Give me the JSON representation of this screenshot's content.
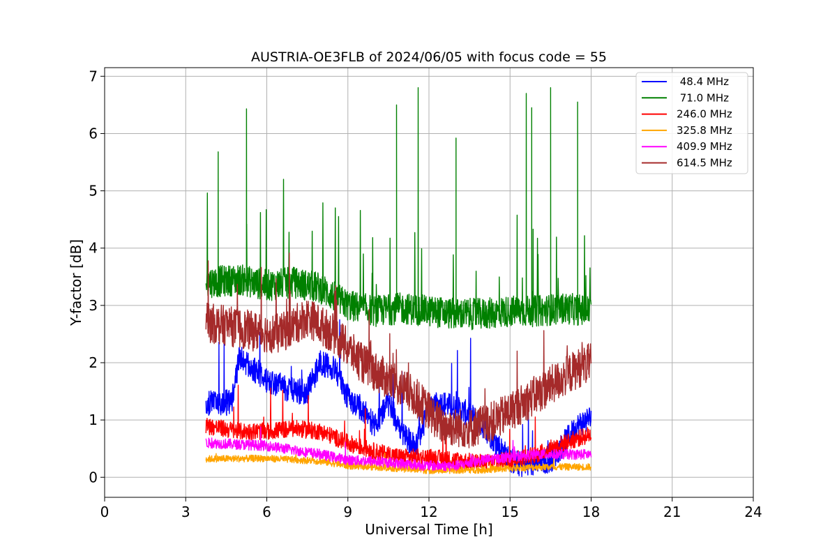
{
  "chart_data": {
    "type": "line",
    "title": "AUSTRIA-OE3FLB of 2024/06/05 with focus code = 55",
    "xlabel": "Universal Time [h]",
    "ylabel": "Y-factor [dB]",
    "xlim": [
      0,
      24
    ],
    "ylim": [
      -0.35,
      7.15
    ],
    "xticks": [
      0,
      3,
      6,
      9,
      12,
      15,
      18,
      21,
      24
    ],
    "yticks": [
      0,
      1,
      2,
      3,
      4,
      5,
      6,
      7
    ],
    "grid": true,
    "legend_position": "upper right",
    "series": [
      {
        "name": " 48.4 MHz",
        "color": "#0000ff",
        "data_range_h": [
          3.75,
          18.0
        ],
        "envelope": {
          "x": [
            3.75,
            4.7,
            5.0,
            5.5,
            6.0,
            6.5,
            7.0,
            7.5,
            8.0,
            8.5,
            9.0,
            9.5,
            10.0,
            10.5,
            11.0,
            11.5,
            12.0,
            12.5,
            13.0,
            13.5,
            14.0,
            14.5,
            15.0,
            15.5,
            16.0,
            16.5,
            17.0,
            17.5,
            18.0
          ],
          "y": [
            1.3,
            1.3,
            2.1,
            1.9,
            1.7,
            1.6,
            1.5,
            1.5,
            2.0,
            1.9,
            1.4,
            1.2,
            0.9,
            1.3,
            0.8,
            0.5,
            1.2,
            1.3,
            1.2,
            1.1,
            0.9,
            0.6,
            0.3,
            0.2,
            0.25,
            0.3,
            0.6,
            0.9,
            1.05
          ]
        }
      },
      {
        "name": " 71.0 MHz",
        "color": "#008000",
        "data_range_h": [
          3.75,
          18.0
        ],
        "envelope": {
          "x": [
            3.75,
            5.0,
            6.0,
            7.0,
            8.0,
            9.0,
            10.0,
            11.0,
            12.0,
            13.0,
            14.0,
            15.0,
            16.0,
            17.0,
            18.0
          ],
          "y": [
            3.4,
            3.45,
            3.35,
            3.4,
            3.3,
            3.0,
            2.9,
            2.95,
            2.9,
            2.85,
            2.85,
            2.9,
            2.9,
            2.95,
            2.9
          ]
        },
        "peaks": [
          {
            "x": 4.2,
            "y": 5.68
          },
          {
            "x": 5.25,
            "y": 6.43
          },
          {
            "x": 10.8,
            "y": 6.5
          },
          {
            "x": 11.6,
            "y": 6.8
          },
          {
            "x": 13.0,
            "y": 5.92
          },
          {
            "x": 15.6,
            "y": 6.7
          },
          {
            "x": 15.8,
            "y": 6.45
          },
          {
            "x": 16.5,
            "y": 6.8
          },
          {
            "x": 17.5,
            "y": 6.55
          }
        ]
      },
      {
        "name": "246.0 MHz",
        "color": "#ff0000",
        "data_range_h": [
          3.75,
          18.0
        ],
        "envelope": {
          "x": [
            3.75,
            5.0,
            6.0,
            7.0,
            8.0,
            9.0,
            10.0,
            11.0,
            12.0,
            13.0,
            14.0,
            15.0,
            16.0,
            17.0,
            18.0
          ],
          "y": [
            0.9,
            0.8,
            0.8,
            0.85,
            0.8,
            0.6,
            0.45,
            0.35,
            0.35,
            0.3,
            0.25,
            0.3,
            0.4,
            0.6,
            0.75
          ]
        }
      },
      {
        "name": "325.8 MHz",
        "color": "#ffa500",
        "data_range_h": [
          3.75,
          18.0
        ],
        "envelope": {
          "x": [
            3.75,
            6.0,
            8.0,
            9.0,
            10.0,
            12.0,
            14.0,
            16.0,
            18.0
          ],
          "y": [
            0.32,
            0.33,
            0.28,
            0.2,
            0.18,
            0.12,
            0.13,
            0.18,
            0.18
          ]
        }
      },
      {
        "name": "409.9 MHz",
        "color": "#ff00ff",
        "data_range_h": [
          3.75,
          18.0
        ],
        "envelope": {
          "x": [
            3.75,
            6.0,
            8.0,
            9.0,
            10.0,
            12.0,
            13.0,
            14.0,
            15.0,
            16.0,
            17.0,
            18.0
          ],
          "y": [
            0.6,
            0.55,
            0.4,
            0.3,
            0.28,
            0.2,
            0.2,
            0.3,
            0.35,
            0.4,
            0.4,
            0.4
          ]
        }
      },
      {
        "name": "614.5 MHz",
        "color": "#a52a2a",
        "data_range_h": [
          3.75,
          18.0
        ],
        "envelope": {
          "x": [
            3.75,
            4.5,
            5.5,
            6.5,
            7.5,
            8.5,
            9.5,
            10.5,
            11.5,
            12.5,
            13.5,
            14.5,
            15.5,
            16.5,
            17.5,
            18.0
          ],
          "y": [
            2.7,
            2.65,
            2.55,
            2.5,
            2.8,
            2.5,
            2.0,
            1.7,
            1.4,
            0.9,
            0.85,
            1.0,
            1.3,
            1.6,
            1.9,
            2.0
          ]
        }
      }
    ]
  }
}
